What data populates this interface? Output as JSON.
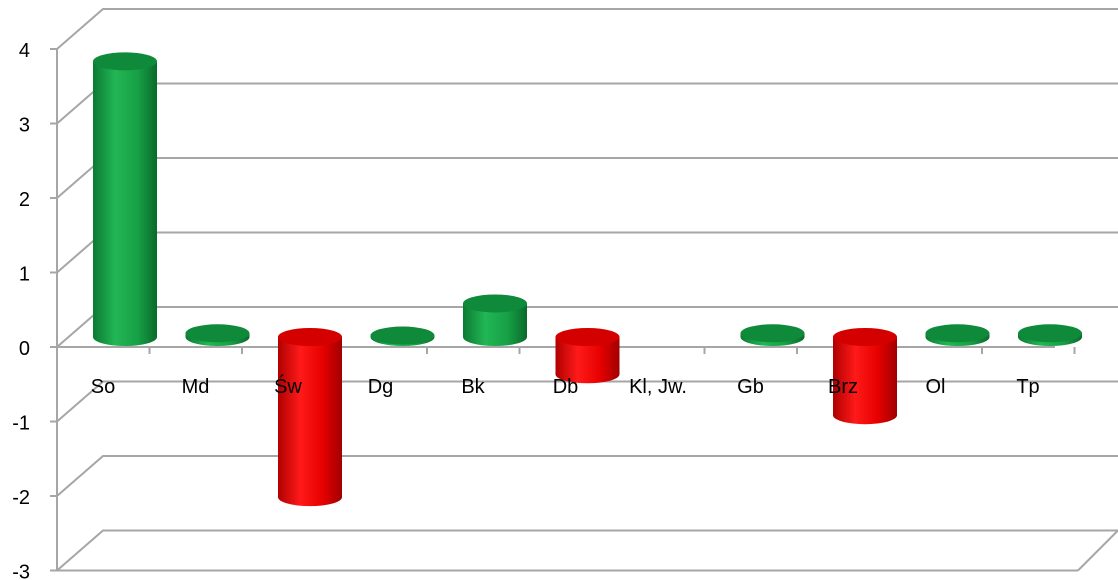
{
  "chart_data": {
    "type": "bar",
    "style": "3d-cylinder",
    "categories": [
      "So",
      "Md",
      "Św",
      "Dg",
      "Bk",
      "Db",
      "Kl, Jw.",
      "Gb",
      "Brz",
      "Ol",
      "Tp"
    ],
    "values": [
      3.7,
      0.05,
      -2.15,
      0.02,
      0.45,
      -0.5,
      0.0,
      0.05,
      -1.05,
      0.05,
      0.05
    ],
    "ylim": [
      -3,
      4
    ],
    "yticks": [
      "4",
      "3",
      "2",
      "1",
      "0",
      "-1",
      "-2",
      "-3"
    ],
    "grid": true,
    "legend": "none",
    "colors": {
      "positive": "#1aa64a",
      "negative": "#e60000",
      "grid": "#a6a6a6"
    }
  }
}
